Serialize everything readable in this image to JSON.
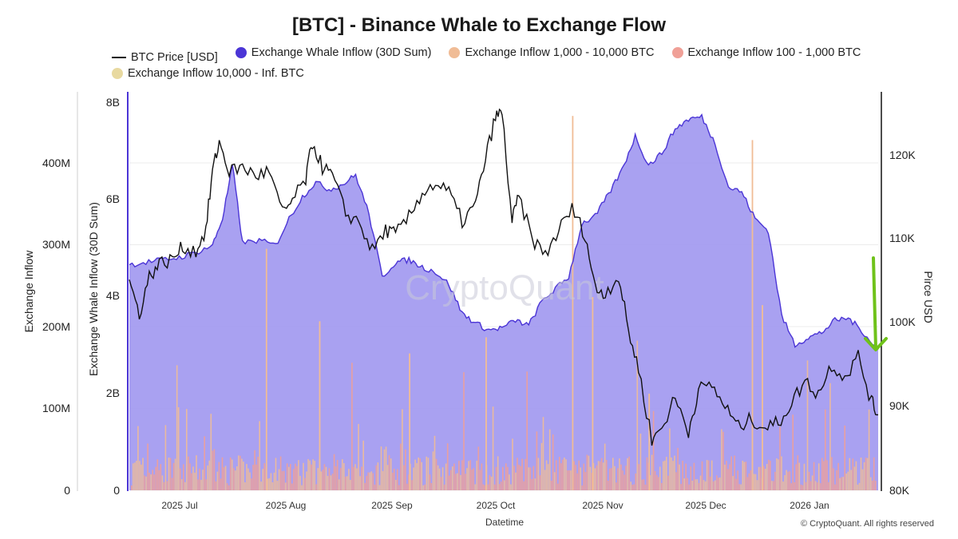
{
  "chart_data": {
    "type": "area",
    "title": "[BTC] - Binance Whale to Exchange Flow",
    "xlabel": "Datetime",
    "ylabel_outer": "Exchange Inflow",
    "ylabel_inner": "Exchange Whale Inflow (30D Sum)",
    "ylabel_right": "Pirce USD",
    "watermark": "CryptoQuant",
    "copyright": "© CryptoQuant. All rights reserved",
    "x_ticks": [
      "2025 Jul",
      "2025 Aug",
      "2025 Sep",
      "2025 Oct",
      "2025 Nov",
      "2025 Dec",
      "2026 Jan"
    ],
    "y_outer_ticks": [
      "0",
      "100M",
      "200M",
      "300M",
      "400M"
    ],
    "y_inner_ticks": [
      "0",
      "2B",
      "4B",
      "6B",
      "8B"
    ],
    "y_right_ticks": [
      "80K",
      "90K",
      "100K",
      "110K",
      "120K"
    ],
    "y_inner_range": [
      0,
      8000000000
    ],
    "y_right_range": [
      80000,
      127000
    ],
    "x_range": [
      "2025-06-17",
      "2026-01-28"
    ],
    "legend": [
      {
        "name": "BTC Price [USD]",
        "kind": "line",
        "color": "#111111"
      },
      {
        "name": "Exchange Whale Inflow (30D Sum)",
        "kind": "dot",
        "color": "#4b35d6"
      },
      {
        "name": "Exchange Inflow 1,000 - 10,000 BTC",
        "kind": "dot",
        "color": "#f0bc96"
      },
      {
        "name": "Exchange Inflow 100 - 1,000 BTC",
        "kind": "dot",
        "color": "#f0a097"
      },
      {
        "name": "Exchange Inflow 10,000 - Inf. BTC",
        "kind": "dot",
        "color": "#e8d9a0"
      }
    ],
    "colors": {
      "whale_fill": "#a49cf0",
      "whale_line": "#4b35d6",
      "price_line": "#111111",
      "bar_1k_10k": "#f0bc96",
      "bar_100_1k": "#f0a097",
      "annotation_arrow": "#6fc21a"
    },
    "series": [
      {
        "name": "Exchange Whale Inflow (30D Sum)",
        "x": [
          "2025-06-17",
          "2025-06-22",
          "2025-06-27",
          "2025-07-02",
          "2025-07-07",
          "2025-07-12",
          "2025-07-15",
          "2025-07-18",
          "2025-07-21",
          "2025-07-26",
          "2025-07-31",
          "2025-08-04",
          "2025-08-08",
          "2025-08-12",
          "2025-08-16",
          "2025-08-20",
          "2025-08-24",
          "2025-08-28",
          "2025-09-01",
          "2025-09-05",
          "2025-09-09",
          "2025-09-13",
          "2025-09-17",
          "2025-09-21",
          "2025-09-25",
          "2025-09-29",
          "2025-10-03",
          "2025-10-07",
          "2025-10-11",
          "2025-10-15",
          "2025-10-19",
          "2025-10-23",
          "2025-10-27",
          "2025-10-31",
          "2025-11-04",
          "2025-11-08",
          "2025-11-12",
          "2025-11-16",
          "2025-11-20",
          "2025-11-24",
          "2025-11-28",
          "2025-12-02",
          "2025-12-06",
          "2025-12-10",
          "2025-12-14",
          "2025-12-18",
          "2025-12-22",
          "2025-12-26",
          "2025-12-30",
          "2026-01-03",
          "2026-01-07",
          "2026-01-11",
          "2026-01-15",
          "2026-01-19",
          "2026-01-23",
          "2026-01-28"
        ],
        "values": [
          4650000000.0,
          4700000000.0,
          4750000000.0,
          4800000000.0,
          4900000000.0,
          5050000000.0,
          5600000000.0,
          6700000000.0,
          5100000000.0,
          5150000000.0,
          5050000000.0,
          5600000000.0,
          6050000000.0,
          6350000000.0,
          6200000000.0,
          6300000000.0,
          6500000000.0,
          5700000000.0,
          4400000000.0,
          4700000000.0,
          4750000000.0,
          4600000000.0,
          4500000000.0,
          4250000000.0,
          3650000000.0,
          3450000000.0,
          3300000000.0,
          3350000000.0,
          3500000000.0,
          3400000000.0,
          3900000000.0,
          4150000000.0,
          4400000000.0,
          5500000000.0,
          5650000000.0,
          6100000000.0,
          6600000000.0,
          7300000000.0,
          6700000000.0,
          6950000000.0,
          7450000000.0,
          7650000000.0,
          7700000000.0,
          7150000000.0,
          6250000000.0,
          6150000000.0,
          5600000000.0,
          5350000000.0,
          3600000000.0,
          3000000000.0,
          3150000000.0,
          3250000000.0,
          3500000000.0,
          3550000000.0,
          3300000000.0,
          2900000000.0
        ]
      },
      {
        "name": "BTC Price [USD]",
        "x": [
          "2025-06-17",
          "2025-06-20",
          "2025-06-23",
          "2025-06-26",
          "2025-06-30",
          "2025-07-03",
          "2025-07-07",
          "2025-07-10",
          "2025-07-12",
          "2025-07-14",
          "2025-07-17",
          "2025-07-21",
          "2025-07-25",
          "2025-07-29",
          "2025-08-02",
          "2025-08-05",
          "2025-08-09",
          "2025-08-11",
          "2025-08-14",
          "2025-08-17",
          "2025-08-21",
          "2025-08-25",
          "2025-08-29",
          "2025-09-02",
          "2025-09-05",
          "2025-09-09",
          "2025-09-13",
          "2025-09-17",
          "2025-09-21",
          "2025-09-25",
          "2025-09-29",
          "2025-10-02",
          "2025-10-05",
          "2025-10-07",
          "2025-10-10",
          "2025-10-12",
          "2025-10-16",
          "2025-10-20",
          "2025-10-24",
          "2025-10-28",
          "2025-11-01",
          "2025-11-04",
          "2025-11-07",
          "2025-11-11",
          "2025-11-14",
          "2025-11-17",
          "2025-11-21",
          "2025-11-24",
          "2025-11-28",
          "2025-12-02",
          "2025-12-05",
          "2025-12-09",
          "2025-12-13",
          "2025-12-17",
          "2025-12-21",
          "2025-12-25",
          "2025-12-29",
          "2026-01-02",
          "2026-01-06",
          "2026-01-10",
          "2026-01-14",
          "2026-01-18",
          "2026-01-22",
          "2026-01-26",
          "2026-01-28"
        ],
        "values": [
          105000,
          101000,
          105500,
          107000,
          107500,
          109000,
          108500,
          111000,
          118000,
          121500,
          118000,
          118500,
          117500,
          118000,
          113000,
          114500,
          117000,
          121500,
          118500,
          117500,
          113000,
          112000,
          108500,
          111000,
          110500,
          112500,
          115500,
          116500,
          115500,
          112000,
          114000,
          119500,
          124500,
          125000,
          112000,
          115000,
          110000,
          108000,
          111000,
          113500,
          110500,
          104000,
          103500,
          105500,
          99000,
          94500,
          86000,
          87500,
          91000,
          87000,
          92000,
          92500,
          90000,
          87500,
          88500,
          87500,
          88000,
          90500,
          93000,
          91500,
          95000,
          93500,
          96000,
          90500,
          89000
        ]
      },
      {
        "name": "Exchange Inflow 1,000 - 10,000 BTC",
        "note": "tall spikes (values read on left Exchange Inflow axis)",
        "x": [
          "2025-07-28",
          "2025-10-28",
          "2025-11-03",
          "2025-11-20",
          "2025-12-21",
          "2025-12-24",
          "2025-08-13",
          "2025-09-09",
          "2025-10-02"
        ],
        "values": [
          300000000,
          465000000,
          240000000,
          120000000,
          435000000,
          230000000,
          210000000,
          170000000,
          190000000
        ]
      }
    ]
  }
}
